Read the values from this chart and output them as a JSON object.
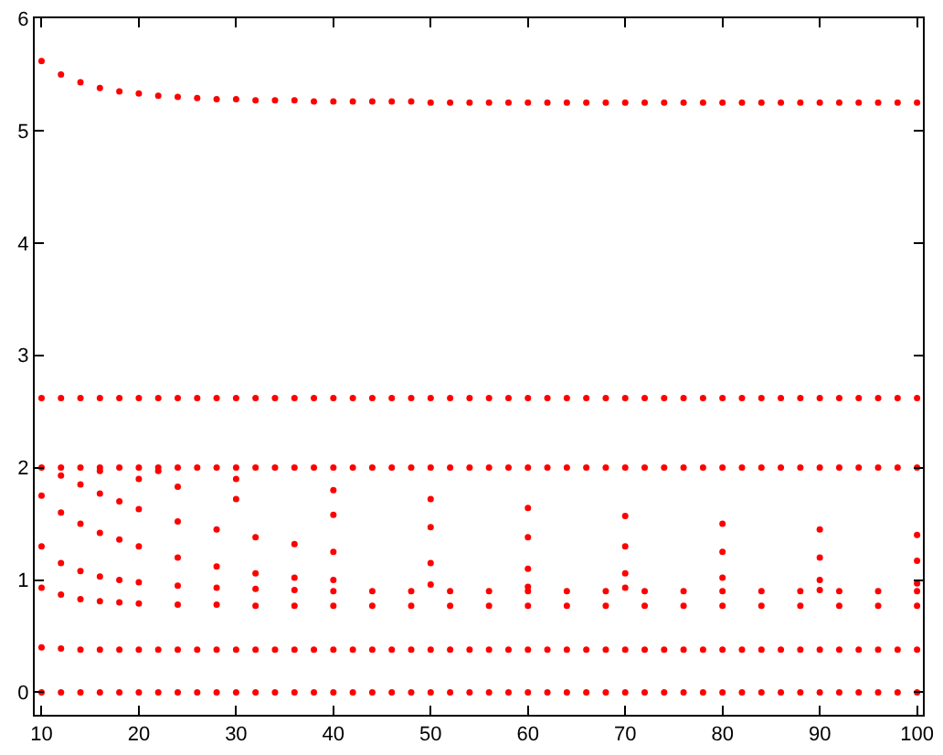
{
  "chart_data": {
    "type": "scatter",
    "marker": "circle",
    "x": [
      10,
      12,
      14,
      16,
      18,
      20,
      22,
      24,
      26,
      28,
      30,
      32,
      34,
      36,
      38,
      40,
      42,
      44,
      46,
      48,
      50,
      52,
      54,
      56,
      58,
      60,
      62,
      64,
      66,
      68,
      70,
      72,
      74,
      76,
      78,
      80,
      82,
      84,
      86,
      88,
      90,
      92,
      94,
      96,
      98,
      100
    ],
    "xlim": [
      9.3,
      100.6
    ],
    "ylim": [
      -0.2,
      6
    ],
    "xticks": [
      10,
      20,
      30,
      40,
      50,
      60,
      70,
      80,
      90,
      100
    ],
    "yticks": [
      0,
      1,
      2,
      3,
      4,
      5,
      6
    ],
    "series": [
      {
        "color": "#ff0000",
        "values": [
          5.62,
          5.5,
          5.43,
          5.38,
          5.35,
          5.33,
          5.31,
          5.3,
          5.29,
          5.28,
          5.28,
          5.27,
          5.27,
          5.27,
          5.26,
          5.26,
          5.26,
          5.26,
          5.26,
          5.26,
          5.25,
          5.25,
          5.25,
          5.25,
          5.25,
          5.25,
          5.25,
          5.25,
          5.25,
          5.25,
          5.25,
          5.25,
          5.25,
          5.25,
          5.25,
          5.25,
          5.25,
          5.25,
          5.25,
          5.25,
          5.25,
          5.25,
          5.25,
          5.25,
          5.25,
          5.25
        ]
      },
      {
        "color": "#ff0000",
        "values": [
          2.62,
          2.62,
          2.62,
          2.62,
          2.62,
          2.62,
          2.62,
          2.62,
          2.62,
          2.62,
          2.62,
          2.62,
          2.62,
          2.62,
          2.62,
          2.62,
          2.62,
          2.62,
          2.62,
          2.62,
          2.62,
          2.62,
          2.62,
          2.62,
          2.62,
          2.62,
          2.62,
          2.62,
          2.62,
          2.62,
          2.62,
          2.62,
          2.62,
          2.62,
          2.62,
          2.62,
          2.62,
          2.62,
          2.62,
          2.62,
          2.62,
          2.62,
          2.62,
          2.62,
          2.62,
          2.62
        ]
      },
      {
        "color": "#ff0000",
        "values": [
          2,
          2,
          2,
          2,
          2,
          2,
          2,
          2,
          2,
          2,
          2,
          2,
          2,
          2,
          2,
          2,
          2,
          2,
          2,
          2,
          2,
          2,
          2,
          2,
          2,
          2,
          2,
          2,
          2,
          2,
          2,
          2,
          2,
          2,
          2,
          2,
          2,
          2,
          2,
          2,
          2,
          2,
          2,
          2,
          2,
          2
        ]
      },
      {
        "color": "#ff0000",
        "x": [
          10,
          12,
          14,
          16,
          18,
          20,
          24,
          28,
          32,
          36,
          40,
          50,
          60,
          70,
          80,
          90
        ],
        "values": [
          1.75,
          1.6,
          1.5,
          1.42,
          1.36,
          1.3,
          1.2,
          1.12,
          1.06,
          1.02,
          1.0,
          0.96,
          0.94,
          0.93,
          null,
          0.91
        ]
      },
      {
        "color": "#ff0000",
        "x": [
          12,
          14,
          16,
          18,
          20,
          24,
          28,
          32,
          36,
          40,
          50,
          60,
          70,
          80,
          90,
          100
        ],
        "values": [
          1.93,
          1.85,
          1.77,
          1.7,
          1.63,
          1.52,
          1.45,
          1.38,
          1.32,
          1.25,
          1.15,
          1.1,
          1.06,
          1.02,
          1.0,
          0.97
        ]
      },
      {
        "color": "#ff0000",
        "x": [
          16,
          20,
          24,
          30,
          40,
          50,
          60,
          70,
          80,
          90,
          100
        ],
        "values": [
          1.97,
          1.9,
          1.83,
          1.72,
          1.58,
          1.47,
          1.38,
          1.3,
          1.25,
          1.2,
          1.17
        ]
      },
      {
        "color": "#ff0000",
        "x": [
          22,
          30,
          40,
          50,
          60,
          70,
          80,
          90,
          100
        ],
        "values": [
          1.97,
          1.9,
          1.8,
          1.72,
          1.64,
          1.57,
          1.5,
          1.45,
          1.4
        ]
      },
      {
        "color": "#ff0000",
        "x": [
          10,
          12,
          14,
          16,
          18,
          20,
          24,
          28,
          32,
          36,
          40,
          44,
          48,
          52,
          56,
          60,
          64,
          68,
          72,
          76,
          80,
          84,
          88,
          92,
          96,
          100
        ],
        "values": [
          1.3,
          1.15,
          1.08,
          1.03,
          1.0,
          0.98,
          0.95,
          0.93,
          0.92,
          0.91,
          0.9,
          0.9,
          0.9,
          0.9,
          0.9,
          0.9,
          0.9,
          0.9,
          0.9,
          0.9,
          0.9,
          0.9,
          0.9,
          0.9,
          0.9,
          0.9
        ]
      },
      {
        "color": "#ff0000",
        "x": [
          10,
          12,
          14,
          16,
          18,
          20,
          24,
          28,
          32,
          36,
          40,
          44,
          48,
          52,
          56,
          60,
          64,
          68,
          72,
          76,
          80,
          84,
          88,
          92,
          96,
          100
        ],
        "values": [
          0.93,
          0.87,
          0.83,
          0.81,
          0.8,
          0.79,
          0.78,
          0.78,
          0.77,
          0.77,
          0.77,
          0.77,
          0.77,
          0.77,
          0.77,
          0.77,
          0.77,
          0.77,
          0.77,
          0.77,
          0.77,
          0.77,
          0.77,
          0.77,
          0.77,
          0.77
        ]
      },
      {
        "color": "#ff0000",
        "values": [
          0.4,
          0.39,
          0.38,
          0.38,
          0.38,
          0.38,
          0.38,
          0.38,
          0.38,
          0.38,
          0.38,
          0.38,
          0.38,
          0.38,
          0.38,
          0.38,
          0.38,
          0.38,
          0.38,
          0.38,
          0.38,
          0.38,
          0.38,
          0.38,
          0.38,
          0.38,
          0.38,
          0.38,
          0.38,
          0.38,
          0.38,
          0.38,
          0.38,
          0.38,
          0.38,
          0.38,
          0.38,
          0.38,
          0.38,
          0.38,
          0.38,
          0.38,
          0.38,
          0.38,
          0.38,
          0.38
        ]
      },
      {
        "color": "#ff0000",
        "values": [
          0,
          0,
          0,
          0,
          0,
          0,
          0,
          0,
          0,
          0,
          0,
          0,
          0,
          0,
          0,
          0,
          0,
          0,
          0,
          0,
          0,
          0,
          0,
          0,
          0,
          0,
          0,
          0,
          0,
          0,
          0,
          0,
          0,
          0,
          0,
          0,
          0,
          0,
          0,
          0,
          0,
          0,
          0,
          0,
          0,
          0
        ]
      }
    ]
  }
}
